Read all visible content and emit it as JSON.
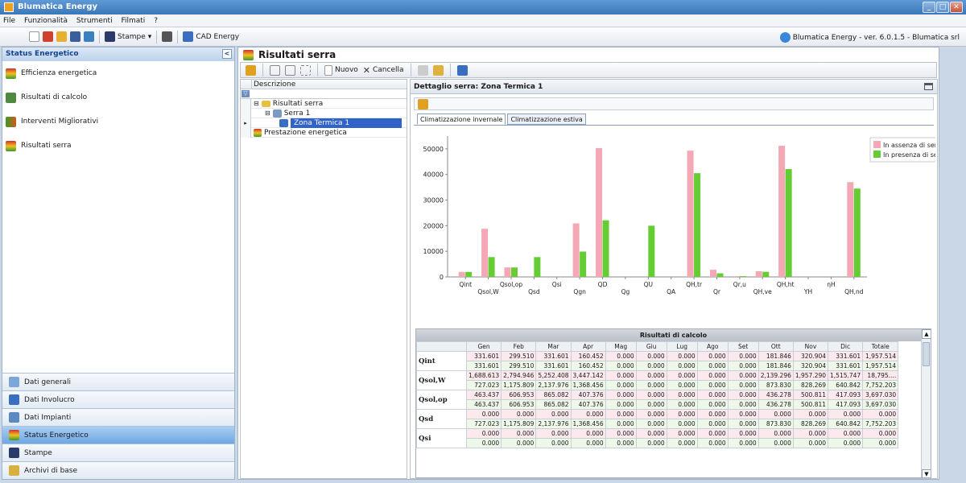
{
  "window": {
    "title": "Blumatica Energy",
    "buttons": [
      "_",
      "□",
      "✕"
    ]
  },
  "menu": [
    "File",
    "Funzionalità",
    "Strumenti",
    "Filmati",
    "?"
  ],
  "toolbar": {
    "stampe_label": "Stampe",
    "cad_label": "CAD Energy",
    "version": "Blumatica Energy - ver. 6.0.1.5 - Blumatica srl"
  },
  "left_panel": {
    "title": "Status Energetico",
    "items": [
      {
        "label": "Efficienza energetica",
        "icon": "energy-label-icon",
        "color": "#3a9a2a"
      },
      {
        "label": "Risultati di calcolo",
        "icon": "calculator-icon",
        "color": "#4d8a3f"
      },
      {
        "label": "Interventi Migliorativi",
        "icon": "improvement-icon",
        "color": "#d05a1a"
      },
      {
        "label": "Risultati serra",
        "icon": "greenhouse-results-icon",
        "color": "#3a9a2a"
      }
    ],
    "bottom_nav": [
      {
        "label": "Dati generali",
        "icon": "house-icon",
        "active": false
      },
      {
        "label": "Dati Involucro",
        "icon": "envelope-icon",
        "active": false
      },
      {
        "label": "Dati Impianti",
        "icon": "plant-icon",
        "active": false
      },
      {
        "label": "Status Energetico",
        "icon": "energy-status-icon",
        "active": true
      },
      {
        "label": "Stampe",
        "icon": "printer-icon",
        "active": false
      },
      {
        "label": "Archivi di base",
        "icon": "archive-icon",
        "active": false
      }
    ]
  },
  "main": {
    "title": "Risultati serra",
    "subtoolbar": {
      "nuovo_label": "Nuovo",
      "cancella_label": "Cancella"
    },
    "tree": {
      "header": "Descrizione",
      "nodes": [
        {
          "label": "Risultati serra",
          "level": 0,
          "selected": false
        },
        {
          "label": "Serra 1",
          "level": 1,
          "selected": false
        },
        {
          "label": "Zona Termica 1",
          "level": 2,
          "selected": true
        },
        {
          "label": "Prestazione energetica",
          "level": 0,
          "selected": false
        }
      ]
    },
    "detail": {
      "title": "Dettaglio serra: Zona Termica 1",
      "tabs": [
        {
          "label": "Climatizzazione invernale",
          "active": true
        },
        {
          "label": "Climatizzazione estiva",
          "active": false
        }
      ]
    }
  },
  "chart_data": {
    "type": "bar",
    "categories": [
      "Qint",
      "Qsol,W",
      "Qsol,op",
      "Qsd",
      "Qsi",
      "Qgn",
      "QD",
      "Qg",
      "QU",
      "QA",
      "QH,tr",
      "Qr",
      "Qr,u",
      "QH,ve",
      "QH,ht",
      "YH",
      "ηH",
      "QH,nd"
    ],
    "series": [
      {
        "name": "In assenza di serra",
        "color": "#f4a7b4",
        "values": [
          1957.514,
          18795,
          3697.03,
          0,
          0,
          20900,
          50300,
          0,
          0,
          0,
          49300,
          2800,
          300,
          2200,
          51200,
          0,
          0,
          37000
        ]
      },
      {
        "name": "In presenza di serra",
        "color": "#66cc33",
        "values": [
          1957.514,
          7752.203,
          3697.03,
          7752.203,
          0,
          9900,
          22100,
          0,
          20000,
          0,
          40500,
          1400,
          300,
          2000,
          42100,
          0,
          0,
          34500
        ]
      }
    ],
    "ylim": [
      0,
      55000
    ],
    "yticks": [
      "0",
      "10000",
      "20000",
      "30000",
      "40000",
      "50000"
    ],
    "legend": "top-right",
    "grid": false
  },
  "results": {
    "caption": "Risultati di calcolo",
    "columns": [
      "",
      "Gen",
      "Feb",
      "Mar",
      "Apr",
      "Mag",
      "Giu",
      "Lug",
      "Ago",
      "Set",
      "Ott",
      "Nov",
      "Dic",
      "Totale"
    ],
    "rows": [
      {
        "label": "Qint",
        "a": [
          "331.601",
          "299.510",
          "331.601",
          "160.452",
          "0.000",
          "0.000",
          "0.000",
          "0.000",
          "0.000",
          "181.846",
          "320.904",
          "331.601",
          "1,957.514"
        ],
        "b": [
          "331.601",
          "299.510",
          "331.601",
          "160.452",
          "0.000",
          "0.000",
          "0.000",
          "0.000",
          "0.000",
          "181.846",
          "320.904",
          "331.601",
          "1,957.514"
        ]
      },
      {
        "label": "Qsol,W",
        "a": [
          "1,688.613",
          "2,794.946",
          "5,252.408",
          "3,447.142",
          "0.000",
          "0.000",
          "0.000",
          "0.000",
          "0.000",
          "2,139.296",
          "1,957.290",
          "1,515.747",
          "18,795...."
        ],
        "b": [
          "727.023",
          "1,175.809",
          "2,137.976",
          "1,368.456",
          "0.000",
          "0.000",
          "0.000",
          "0.000",
          "0.000",
          "873.830",
          "828.269",
          "640.842",
          "7,752.203"
        ]
      },
      {
        "label": "Qsol,op",
        "a": [
          "463.437",
          "606.953",
          "865.082",
          "407.376",
          "0.000",
          "0.000",
          "0.000",
          "0.000",
          "0.000",
          "436.278",
          "500.811",
          "417.093",
          "3,697.030"
        ],
        "b": [
          "463.437",
          "606.953",
          "865.082",
          "407.376",
          "0.000",
          "0.000",
          "0.000",
          "0.000",
          "0.000",
          "436.278",
          "500.811",
          "417.093",
          "3,697.030"
        ]
      },
      {
        "label": "Qsd",
        "a": [
          "0.000",
          "0.000",
          "0.000",
          "0.000",
          "0.000",
          "0.000",
          "0.000",
          "0.000",
          "0.000",
          "0.000",
          "0.000",
          "0.000",
          "0.000"
        ],
        "b": [
          "727.023",
          "1,175.809",
          "2,137.976",
          "1,368.456",
          "0.000",
          "0.000",
          "0.000",
          "0.000",
          "0.000",
          "873.830",
          "828.269",
          "640.842",
          "7,752.203"
        ]
      },
      {
        "label": "Qsi",
        "a": [
          "0.000",
          "0.000",
          "0.000",
          "0.000",
          "0.000",
          "0.000",
          "0.000",
          "0.000",
          "0.000",
          "0.000",
          "0.000",
          "0.000",
          "0.000"
        ],
        "b": [
          "0.000",
          "0.000",
          "0.000",
          "0.000",
          "0.000",
          "0.000",
          "0.000",
          "0.000",
          "0.000",
          "0.000",
          "0.000",
          "0.000",
          "0.000"
        ]
      }
    ]
  }
}
